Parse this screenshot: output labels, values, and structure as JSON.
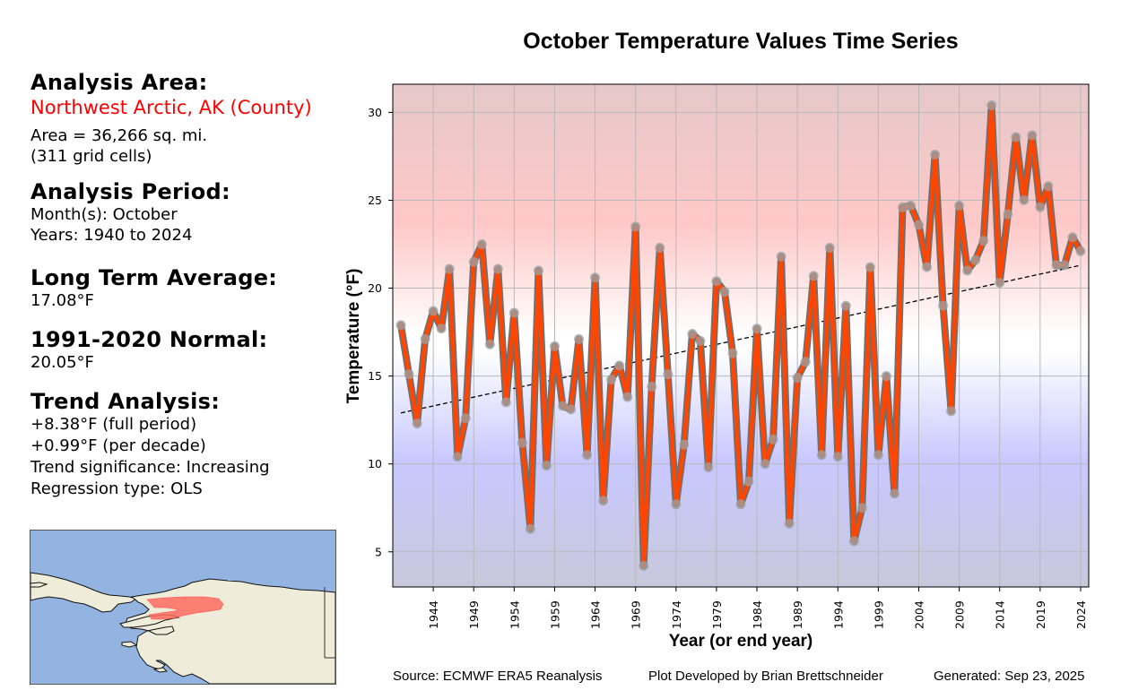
{
  "sidebar": {
    "analysis_area_header": "Analysis Area:",
    "area_name": "Northwest Arctic, AK (County)",
    "area_size": "Area = 36,266 sq. mi.",
    "grid_cells": "(311 grid cells)",
    "period_header": "Analysis Period:",
    "months": "Month(s): October",
    "years": "Years: 1940 to 2024",
    "lta_header": "Long Term Average:",
    "lta_value": "17.08°F",
    "normal_header": "1991-2020 Normal:",
    "normal_value": "20.05°F",
    "trend_header": "Trend Analysis:",
    "trend_full": "+8.38°F (full period)",
    "trend_decade": "+0.99°F (per decade)",
    "trend_significance": "Trend significance: Increasing",
    "regression_type": "Regression type: OLS"
  },
  "map": {
    "region": "Northwest Arctic, AK",
    "colors": {
      "water": "#93b4e1",
      "land": "#efedda",
      "highlight": "#ff6a60"
    }
  },
  "footer": {
    "source": "Source: ECMWF ERA5 Reanalysis",
    "developer": "Plot Developed by Brian Brettschneider",
    "generated": "Generated: Sep 23, 2025"
  },
  "colors": {
    "line": "#ff4500",
    "line_outline": "#707070",
    "marker": "#a0a0a0",
    "trend": "#000000",
    "warm": "#ffc8c8",
    "cold": "#c8c8ff"
  },
  "chart_data": {
    "type": "line",
    "title": "October Temperature Values Time Series",
    "xlabel": "Year (or end year)",
    "ylabel": "Temperature (°F)",
    "xlim": [
      1939,
      2025
    ],
    "ylim": [
      3,
      31.6
    ],
    "xticks": [
      1944,
      1949,
      1954,
      1959,
      1964,
      1969,
      1974,
      1979,
      1984,
      1989,
      1994,
      1999,
      2004,
      2009,
      2014,
      2019,
      2024
    ],
    "yticks": [
      5,
      10,
      15,
      20,
      25,
      30
    ],
    "grid": true,
    "x": [
      1940,
      1941,
      1942,
      1943,
      1944,
      1945,
      1946,
      1947,
      1948,
      1949,
      1950,
      1951,
      1952,
      1953,
      1954,
      1955,
      1956,
      1957,
      1958,
      1959,
      1960,
      1961,
      1962,
      1963,
      1964,
      1965,
      1966,
      1967,
      1968,
      1969,
      1970,
      1971,
      1972,
      1973,
      1974,
      1975,
      1976,
      1977,
      1978,
      1979,
      1980,
      1981,
      1982,
      1983,
      1984,
      1985,
      1986,
      1987,
      1988,
      1989,
      1990,
      1991,
      1992,
      1993,
      1994,
      1995,
      1996,
      1997,
      1998,
      1999,
      2000,
      2001,
      2002,
      2003,
      2004,
      2005,
      2006,
      2007,
      2008,
      2009,
      2010,
      2011,
      2012,
      2013,
      2014,
      2015,
      2016,
      2017,
      2018,
      2019,
      2020,
      2021,
      2022,
      2023,
      2024
    ],
    "series": [
      {
        "name": "October Temperature",
        "values": [
          17.9,
          15.1,
          12.3,
          17.1,
          18.7,
          17.7,
          21.1,
          10.4,
          12.6,
          21.5,
          22.5,
          16.8,
          21.1,
          13.5,
          18.6,
          11.2,
          6.3,
          21.0,
          9.9,
          16.7,
          13.3,
          13.1,
          17.1,
          10.5,
          20.6,
          7.9,
          14.8,
          15.6,
          13.8,
          23.5,
          4.2,
          14.4,
          22.3,
          15.1,
          7.7,
          11.1,
          17.4,
          17.0,
          9.8,
          20.4,
          19.8,
          16.3,
          7.7,
          9.0,
          17.7,
          10.0,
          11.4,
          21.8,
          6.6,
          14.9,
          15.8,
          20.7,
          10.5,
          22.3,
          10.4,
          19.0,
          5.6,
          7.5,
          21.2,
          10.5,
          15.0,
          8.3,
          24.6,
          24.7,
          23.6,
          21.2,
          27.6,
          19.0,
          13.0,
          24.7,
          21.0,
          21.6,
          22.7,
          30.4,
          20.3,
          24.2,
          28.6,
          25.0,
          28.7,
          24.6,
          25.8,
          21.3,
          21.3,
          22.9,
          22.1
        ]
      }
    ],
    "trend": {
      "name": "OLS trend",
      "start": [
        1940,
        12.9
      ],
      "end": [
        2024,
        21.3
      ],
      "style": "dashed"
    }
  }
}
